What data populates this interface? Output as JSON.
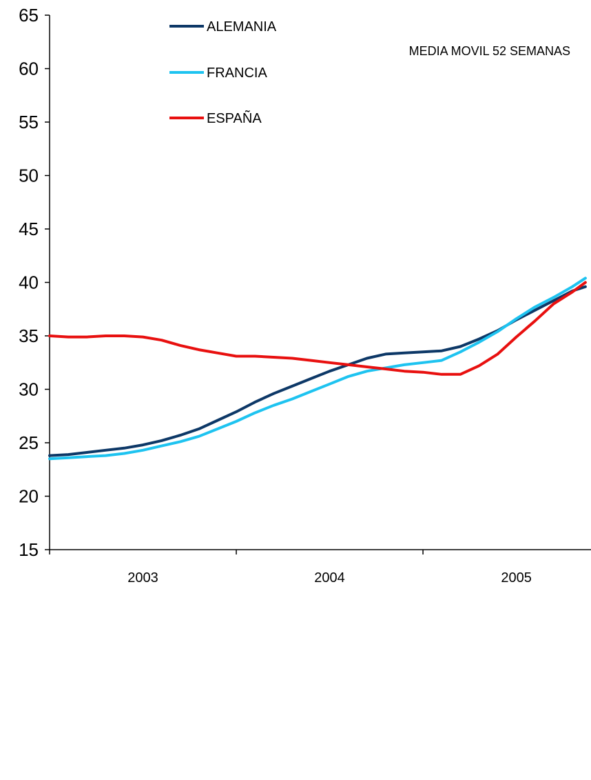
{
  "chart_data": {
    "type": "line",
    "title": "",
    "xlabel": "",
    "ylabel": "",
    "annotation": "MEDIA MOVIL 52 SEMANAS",
    "ylim": [
      15,
      65
    ],
    "yticks": [
      15,
      20,
      25,
      30,
      35,
      40,
      45,
      50,
      55,
      60,
      65
    ],
    "xlim": [
      2003.0,
      2005.9
    ],
    "xtick_labels": [
      {
        "x": 2003.5,
        "label": "2003"
      },
      {
        "x": 2004.5,
        "label": "2004"
      },
      {
        "x": 2005.5,
        "label": "2005"
      }
    ],
    "x_dividers": [
      2004.0,
      2005.0
    ],
    "grid": false,
    "legend_position": "top-left",
    "series": [
      {
        "name": "ALEMANIA",
        "color": "#0d3867",
        "points": [
          [
            2003.0,
            23.8
          ],
          [
            2003.1,
            23.9
          ],
          [
            2003.2,
            24.1
          ],
          [
            2003.3,
            24.3
          ],
          [
            2003.4,
            24.5
          ],
          [
            2003.5,
            24.8
          ],
          [
            2003.6,
            25.2
          ],
          [
            2003.7,
            25.7
          ],
          [
            2003.8,
            26.3
          ],
          [
            2003.9,
            27.1
          ],
          [
            2004.0,
            27.9
          ],
          [
            2004.1,
            28.8
          ],
          [
            2004.2,
            29.6
          ],
          [
            2004.3,
            30.3
          ],
          [
            2004.4,
            31.0
          ],
          [
            2004.5,
            31.7
          ],
          [
            2004.6,
            32.3
          ],
          [
            2004.7,
            32.9
          ],
          [
            2004.8,
            33.3
          ],
          [
            2004.9,
            33.4
          ],
          [
            2005.0,
            33.5
          ],
          [
            2005.1,
            33.6
          ],
          [
            2005.2,
            34.0
          ],
          [
            2005.3,
            34.7
          ],
          [
            2005.4,
            35.5
          ],
          [
            2005.5,
            36.5
          ],
          [
            2005.6,
            37.4
          ],
          [
            2005.7,
            38.3
          ],
          [
            2005.8,
            39.2
          ],
          [
            2005.87,
            39.6
          ]
        ]
      },
      {
        "name": "FRANCIA",
        "color": "#1ec3f0",
        "points": [
          [
            2003.0,
            23.5
          ],
          [
            2003.1,
            23.6
          ],
          [
            2003.2,
            23.7
          ],
          [
            2003.3,
            23.8
          ],
          [
            2003.4,
            24.0
          ],
          [
            2003.5,
            24.3
          ],
          [
            2003.6,
            24.7
          ],
          [
            2003.7,
            25.1
          ],
          [
            2003.8,
            25.6
          ],
          [
            2003.9,
            26.3
          ],
          [
            2004.0,
            27.0
          ],
          [
            2004.1,
            27.8
          ],
          [
            2004.2,
            28.5
          ],
          [
            2004.3,
            29.1
          ],
          [
            2004.4,
            29.8
          ],
          [
            2004.5,
            30.5
          ],
          [
            2004.6,
            31.2
          ],
          [
            2004.7,
            31.7
          ],
          [
            2004.8,
            32.0
          ],
          [
            2004.9,
            32.3
          ],
          [
            2005.0,
            32.5
          ],
          [
            2005.1,
            32.7
          ],
          [
            2005.2,
            33.5
          ],
          [
            2005.3,
            34.4
          ],
          [
            2005.4,
            35.4
          ],
          [
            2005.5,
            36.6
          ],
          [
            2005.6,
            37.7
          ],
          [
            2005.7,
            38.6
          ],
          [
            2005.8,
            39.6
          ],
          [
            2005.87,
            40.4
          ]
        ]
      },
      {
        "name": "ESPAÑA",
        "color": "#e8100f",
        "points": [
          [
            2003.0,
            35.0
          ],
          [
            2003.1,
            34.9
          ],
          [
            2003.2,
            34.9
          ],
          [
            2003.3,
            35.0
          ],
          [
            2003.4,
            35.0
          ],
          [
            2003.5,
            34.9
          ],
          [
            2003.6,
            34.6
          ],
          [
            2003.7,
            34.1
          ],
          [
            2003.8,
            33.7
          ],
          [
            2003.9,
            33.4
          ],
          [
            2004.0,
            33.1
          ],
          [
            2004.1,
            33.1
          ],
          [
            2004.2,
            33.0
          ],
          [
            2004.3,
            32.9
          ],
          [
            2004.4,
            32.7
          ],
          [
            2004.5,
            32.5
          ],
          [
            2004.6,
            32.3
          ],
          [
            2004.7,
            32.1
          ],
          [
            2004.8,
            31.9
          ],
          [
            2004.9,
            31.7
          ],
          [
            2005.0,
            31.6
          ],
          [
            2005.1,
            31.4
          ],
          [
            2005.2,
            31.4
          ],
          [
            2005.3,
            32.2
          ],
          [
            2005.4,
            33.3
          ],
          [
            2005.5,
            34.9
          ],
          [
            2005.6,
            36.4
          ],
          [
            2005.7,
            38.0
          ],
          [
            2005.8,
            39.1
          ],
          [
            2005.87,
            40.0
          ]
        ]
      }
    ]
  }
}
